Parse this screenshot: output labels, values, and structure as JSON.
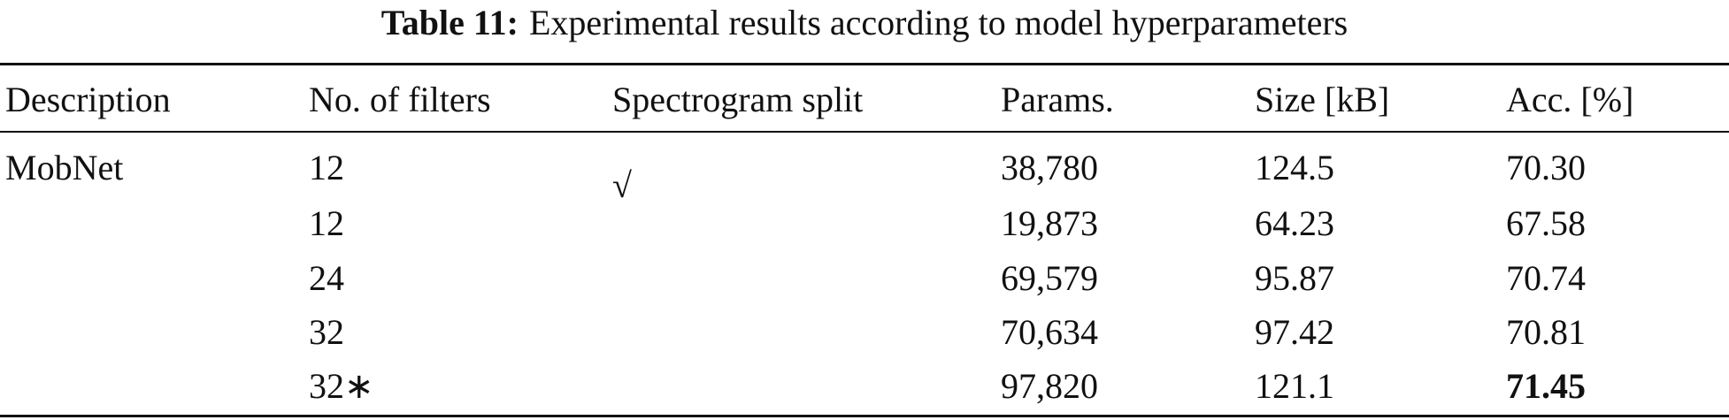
{
  "table": {
    "caption": {
      "label": "Table 11:",
      "text": "Experimental results according to model hyperparameters"
    },
    "headers": [
      "Description",
      "No. of filters",
      "Spectrogram split",
      "Params.",
      "Size [kB]",
      "Acc. [%]"
    ],
    "rows": [
      {
        "description": "MobNet",
        "filters": "12",
        "split": "√",
        "params": "38,780",
        "size": "124.5",
        "acc": "70.30"
      },
      {
        "filters": "12",
        "params": "19,873",
        "size": "64.23",
        "acc": "67.58"
      },
      {
        "filters": "24",
        "params": "69,579",
        "size": "95.87",
        "acc": "70.74"
      },
      {
        "filters": "32",
        "params": "70,634",
        "size": "97.42",
        "acc": "70.81"
      },
      {
        "filters": "32∗",
        "params": "97,820",
        "size": "121.1",
        "acc": "71.45",
        "bold": [
          "acc"
        ]
      }
    ]
  }
}
